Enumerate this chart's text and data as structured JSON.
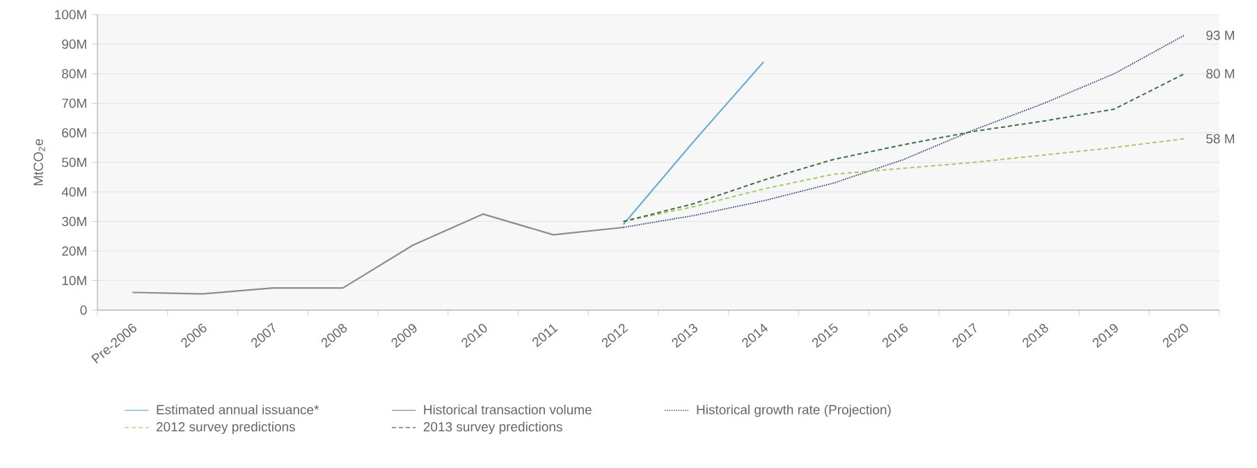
{
  "chart_data": {
    "type": "line",
    "ylabel": "MtCO$_{2}$e",
    "categories": [
      "Pre-2006",
      "2006",
      "2007",
      "2008",
      "2009",
      "2010",
      "2011",
      "2012",
      "2013",
      "2014",
      "2015",
      "2016",
      "2017",
      "2018",
      "2019",
      "2020"
    ],
    "series": [
      {
        "name": "Estimated annual issuance*",
        "color": "#6aaed0",
        "line_style": "solid",
        "values": [
          null,
          null,
          null,
          null,
          null,
          null,
          null,
          29,
          57,
          84,
          null,
          null,
          null,
          null,
          null,
          null
        ]
      },
      {
        "name": "Historical transaction volume",
        "color": "#8c8c8c",
        "line_style": "solid",
        "values": [
          6,
          5.5,
          7.5,
          7.5,
          22,
          32.5,
          25.5,
          28,
          null,
          null,
          null,
          null,
          null,
          null,
          null,
          null
        ]
      },
      {
        "name": "Historical growth rate (Projection)",
        "color": "#2a3f7a",
        "line_style": "dotted",
        "values": [
          null,
          null,
          null,
          null,
          null,
          null,
          null,
          28,
          32,
          37,
          43,
          51,
          61,
          70,
          80,
          93
        ]
      },
      {
        "name": "2012 survey predictions",
        "color": "#a8c96b",
        "line_style": "dashed",
        "values": [
          null,
          null,
          null,
          null,
          null,
          null,
          null,
          30,
          35,
          41,
          46,
          48,
          50,
          52.5,
          55,
          58
        ]
      },
      {
        "name": "2013 survey predictions",
        "color": "#3d6e45",
        "line_style": "dashed",
        "values": [
          null,
          null,
          null,
          null,
          null,
          null,
          null,
          30,
          36,
          44,
          51,
          56,
          60.5,
          64,
          68,
          80
        ]
      }
    ],
    "ylim": [
      0,
      100
    ],
    "yticks": [
      0,
      {
        "value": 10,
        "label": "10M"
      },
      {
        "value": 20,
        "label": "20M"
      },
      {
        "value": 30,
        "label": "30M"
      },
      {
        "value": 40,
        "label": "40M"
      },
      {
        "value": 50,
        "label": "50M"
      },
      {
        "value": 60,
        "label": "60M"
      },
      {
        "value": 70,
        "label": "70M"
      },
      {
        "value": 80,
        "label": "80M"
      },
      {
        "value": 90,
        "label": "90M"
      },
      {
        "value": 100,
        "label": "100M"
      }
    ],
    "annotations": [
      {
        "text": "93 M",
        "x": "2020",
        "y": 93
      },
      {
        "text": "80 M",
        "x": "2020",
        "y": 80
      },
      {
        "text": "58 M",
        "x": "2020",
        "y": 58
      }
    ],
    "grid": "y",
    "legend": "bottom"
  }
}
